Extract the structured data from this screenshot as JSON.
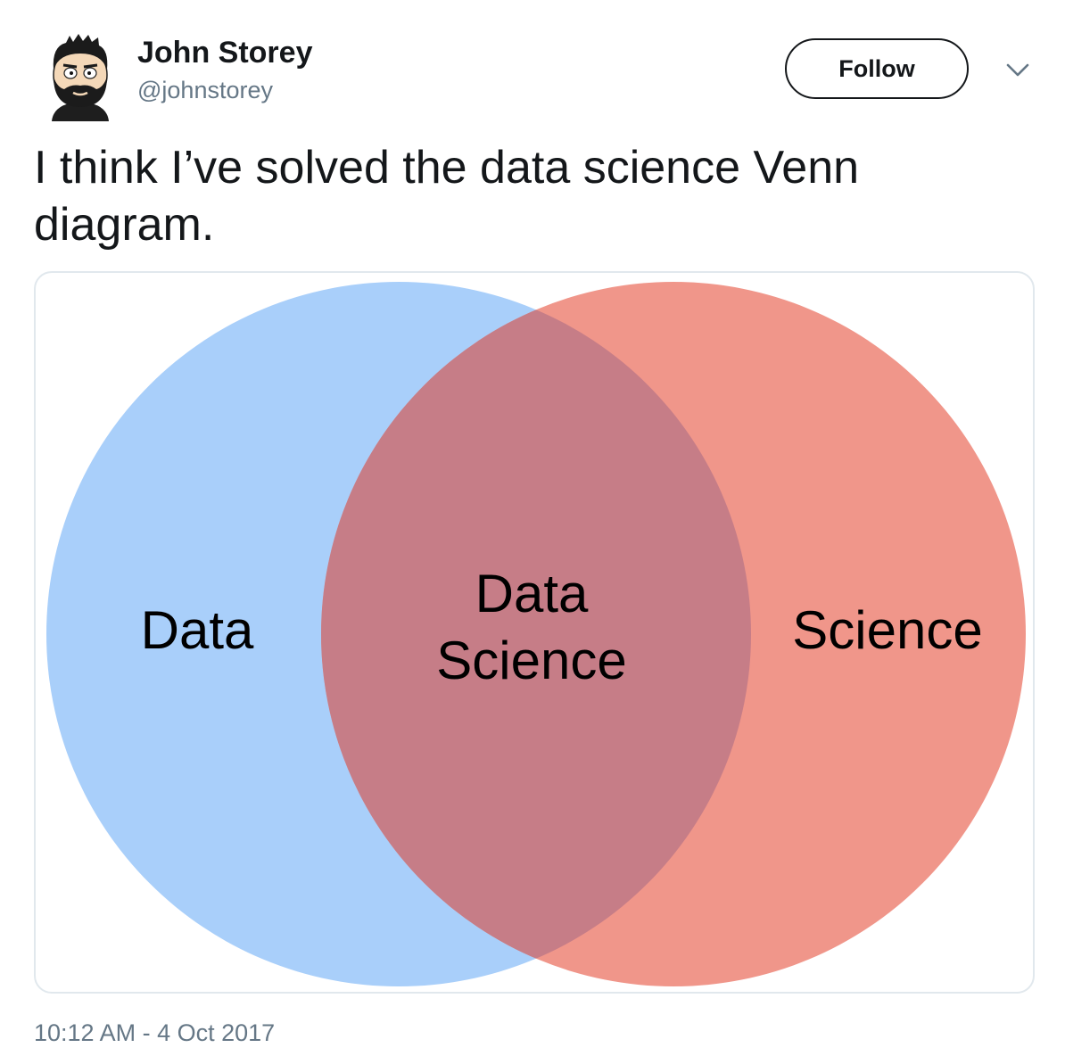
{
  "author": {
    "name": "John Storey",
    "handle": "@johnstorey"
  },
  "follow_button": {
    "label": "Follow"
  },
  "icons": {
    "avatar": "cartoon-avatar-icon",
    "menu": "chevron-down-icon"
  },
  "tweet": {
    "text": "I think I’ve solved the data science Venn diagram.",
    "timestamp": "10:12 AM - 4 Oct 2017"
  },
  "venn": {
    "left_label": "Data",
    "right_label": "Science",
    "overlap_label_line1": "Data",
    "overlap_label_line2": "Science",
    "left_color": "#a9cffa",
    "right_color": "#f0968a",
    "overlap_color": "#c67d87"
  }
}
